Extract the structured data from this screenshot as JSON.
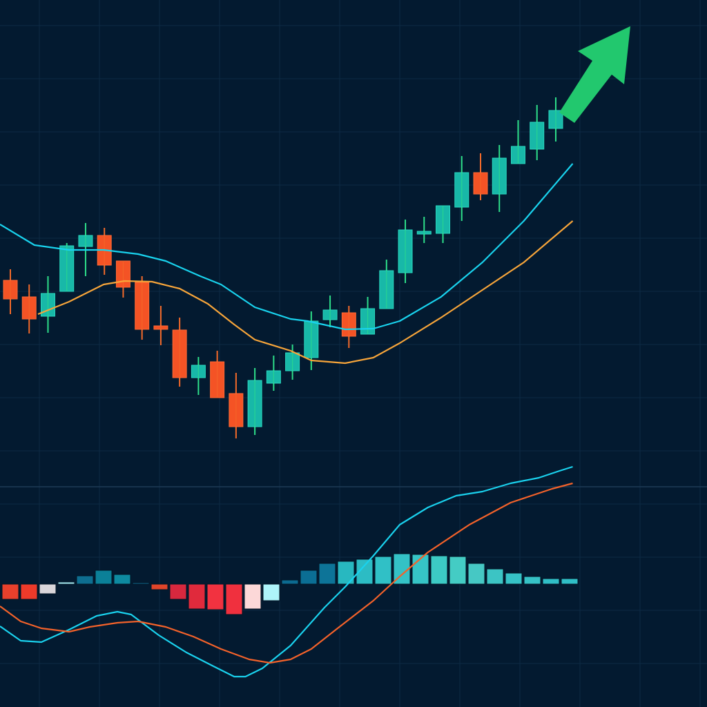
{
  "chart_data": [
    {
      "type": "candlestick",
      "title": "",
      "xlabel": "",
      "ylabel": "",
      "grid": true,
      "ylim": [
        0,
        100
      ],
      "colors": {
        "up": "#18b8a8",
        "down": "#f45325",
        "wick_up": "#2ee08a",
        "wick_down": "#f46a2a",
        "ma_fast": "#19d3ee",
        "ma_slow": "#f7a53a",
        "arrow": "#22c86e",
        "background": "#031a30"
      },
      "candles": [
        {
          "o": 59.4,
          "h": 61.0,
          "l": 54.5,
          "c": 56.7
        },
        {
          "o": 57.0,
          "h": 58.8,
          "l": 51.7,
          "c": 53.8
        },
        {
          "o": 54.2,
          "h": 60.0,
          "l": 51.8,
          "c": 57.5
        },
        {
          "o": 57.8,
          "h": 64.8,
          "l": 57.8,
          "c": 64.4
        },
        {
          "o": 64.3,
          "h": 67.7,
          "l": 60.0,
          "c": 65.9
        },
        {
          "o": 65.9,
          "h": 67.0,
          "l": 60.2,
          "c": 61.6
        },
        {
          "o": 62.2,
          "h": 62.2,
          "l": 56.9,
          "c": 58.4
        },
        {
          "o": 59.1,
          "h": 60.0,
          "l": 50.8,
          "c": 52.3
        },
        {
          "o": 52.8,
          "h": 55.7,
          "l": 50.0,
          "c": 52.3
        },
        {
          "o": 52.2,
          "h": 54.0,
          "l": 44.0,
          "c": 45.3
        },
        {
          "o": 45.3,
          "h": 48.3,
          "l": 42.8,
          "c": 47.1
        },
        {
          "o": 47.6,
          "h": 49.2,
          "l": 42.4,
          "c": 42.4
        },
        {
          "o": 43.0,
          "h": 46.0,
          "l": 36.5,
          "c": 38.2
        },
        {
          "o": 38.2,
          "h": 46.7,
          "l": 37.0,
          "c": 44.9
        },
        {
          "o": 44.5,
          "h": 48.5,
          "l": 43.4,
          "c": 46.3
        },
        {
          "o": 46.3,
          "h": 50.1,
          "l": 45.0,
          "c": 48.9
        },
        {
          "o": 48.2,
          "h": 54.9,
          "l": 46.4,
          "c": 53.5
        },
        {
          "o": 53.7,
          "h": 57.2,
          "l": 52.6,
          "c": 55.1
        },
        {
          "o": 54.7,
          "h": 55.7,
          "l": 49.6,
          "c": 51.3
        },
        {
          "o": 51.6,
          "h": 57.0,
          "l": 51.6,
          "c": 55.3
        },
        {
          "o": 55.3,
          "h": 62.4,
          "l": 55.3,
          "c": 60.8
        },
        {
          "o": 60.5,
          "h": 68.2,
          "l": 59.0,
          "c": 66.7
        },
        {
          "o": 66.1,
          "h": 68.6,
          "l": 64.8,
          "c": 66.5
        },
        {
          "o": 66.2,
          "h": 70.2,
          "l": 64.8,
          "c": 70.2
        },
        {
          "o": 70.0,
          "h": 77.4,
          "l": 68.0,
          "c": 75.0
        },
        {
          "o": 75.0,
          "h": 77.8,
          "l": 71.0,
          "c": 71.9
        },
        {
          "o": 71.9,
          "h": 79.0,
          "l": 69.3,
          "c": 77.1
        },
        {
          "o": 76.3,
          "h": 82.6,
          "l": 76.3,
          "c": 78.8
        },
        {
          "o": 78.4,
          "h": 84.8,
          "l": 76.8,
          "c": 82.3
        },
        {
          "o": 81.4,
          "h": 85.9,
          "l": 79.5,
          "c": 84.0
        }
      ],
      "series": [
        {
          "type": "line",
          "role": "ma_fast",
          "points": [
            [
              -0.55,
              67.5
            ],
            [
              1.28,
              64.5
            ],
            [
              3.12,
              63.8
            ],
            [
              4.96,
              63.8
            ],
            [
              6.79,
              63.2
            ],
            [
              8.26,
              62.2
            ],
            [
              10.1,
              60.0
            ],
            [
              11.2,
              58.8
            ],
            [
              13.0,
              55.5
            ],
            [
              14.9,
              53.8
            ],
            [
              15.8,
              53.5
            ],
            [
              17.8,
              52.3
            ],
            [
              19.3,
              52.4
            ],
            [
              20.7,
              53.5
            ],
            [
              22.9,
              57.0
            ],
            [
              25.1,
              62.0
            ],
            [
              27.3,
              68.0
            ],
            [
              29.9,
              76.3
            ]
          ]
        },
        {
          "type": "line",
          "role": "ma_slow",
          "points": [
            [
              1.47,
              54.5
            ],
            [
              3.12,
              56.3
            ],
            [
              4.96,
              58.8
            ],
            [
              6.06,
              59.3
            ],
            [
              7.53,
              59.2
            ],
            [
              9.0,
              58.2
            ],
            [
              10.5,
              56.0
            ],
            [
              11.9,
              53.0
            ],
            [
              13.0,
              50.8
            ],
            [
              14.9,
              49.2
            ],
            [
              16.0,
              47.8
            ],
            [
              17.8,
              47.4
            ],
            [
              19.3,
              48.2
            ],
            [
              20.7,
              50.3
            ],
            [
              22.9,
              54.0
            ],
            [
              25.1,
              58.0
            ],
            [
              27.3,
              62.0
            ],
            [
              29.9,
              68.0
            ]
          ]
        }
      ],
      "annotation": "up-arrow"
    },
    {
      "type": "bar+line",
      "title": "",
      "grid": true,
      "histogram": [
        -2.2,
        -2.2,
        -1.4,
        0.3,
        1.2,
        2.0,
        1.4,
        0.2,
        -0.8,
        -2.2,
        -3.6,
        -3.7,
        -4.4,
        -3.6,
        -2.4,
        0.6,
        2.0,
        3.0,
        3.3,
        3.6,
        4.0,
        4.4,
        4.3,
        4.1,
        4.0,
        3.0,
        2.2,
        1.6,
        1.1,
        0.8,
        0.8
      ],
      "histogram_colors": [
        "#e8402c",
        "#ee3a2a",
        "#d9d6da",
        "#a8f0f8",
        "#0e6e90",
        "#0b8098",
        "#0e8aa0",
        "#0e6890",
        "#e0452a",
        "#d8283e",
        "#e02a3c",
        "#f23240",
        "#f0303e",
        "#fcd8d8",
        "#aef4fa",
        "#0c6a90",
        "#0b6e94",
        "#0d7498",
        "#28b8c0",
        "#2cbcc4",
        "#30c0c6",
        "#34c2c6",
        "#36c4c6",
        "#3ccac4",
        "#44ccc4",
        "#46c8c4",
        "#3cc4c4",
        "#36c2c6",
        "#36c2c6",
        "#30bec6",
        "#30bec6"
      ],
      "series": [
        {
          "type": "line",
          "role": "macd",
          "color": "#1ad2ee",
          "points": [
            [
              -0.55,
              -6.1
            ],
            [
              0.55,
              -8.2
            ],
            [
              1.65,
              -8.4
            ],
            [
              3.12,
              -6.6
            ],
            [
              4.59,
              -4.6
            ],
            [
              5.69,
              -4.0
            ],
            [
              6.42,
              -4.4
            ],
            [
              7.89,
              -7.4
            ],
            [
              9.36,
              -9.9
            ],
            [
              10.8,
              -11.9
            ],
            [
              11.9,
              -13.4
            ],
            [
              12.5,
              -13.4
            ],
            [
              13.4,
              -12.2
            ],
            [
              14.9,
              -8.9
            ],
            [
              16.7,
              -3.4
            ],
            [
              17.8,
              -0.4
            ],
            [
              19.3,
              4.1
            ],
            [
              20.7,
              8.6
            ],
            [
              22.2,
              11.1
            ],
            [
              23.7,
              12.8
            ],
            [
              25.1,
              13.4
            ],
            [
              26.6,
              14.6
            ],
            [
              28.1,
              15.4
            ],
            [
              29.2,
              16.4
            ],
            [
              29.9,
              17.0
            ]
          ]
        },
        {
          "type": "line",
          "role": "signal",
          "color": "#f4622a",
          "points": [
            [
              -0.55,
              -3.2
            ],
            [
              0.55,
              -5.4
            ],
            [
              1.65,
              -6.4
            ],
            [
              3.12,
              -6.9
            ],
            [
              4.22,
              -6.2
            ],
            [
              5.69,
              -5.6
            ],
            [
              6.79,
              -5.4
            ],
            [
              8.26,
              -6.2
            ],
            [
              9.73,
              -7.6
            ],
            [
              11.2,
              -9.4
            ],
            [
              12.7,
              -10.9
            ],
            [
              13.8,
              -11.4
            ],
            [
              14.9,
              -10.9
            ],
            [
              16.0,
              -9.4
            ],
            [
              17.4,
              -6.4
            ],
            [
              19.3,
              -2.4
            ],
            [
              20.7,
              1.1
            ],
            [
              22.2,
              4.6
            ],
            [
              24.4,
              8.6
            ],
            [
              26.6,
              11.8
            ],
            [
              28.8,
              13.8
            ],
            [
              29.9,
              14.6
            ]
          ]
        }
      ]
    }
  ]
}
